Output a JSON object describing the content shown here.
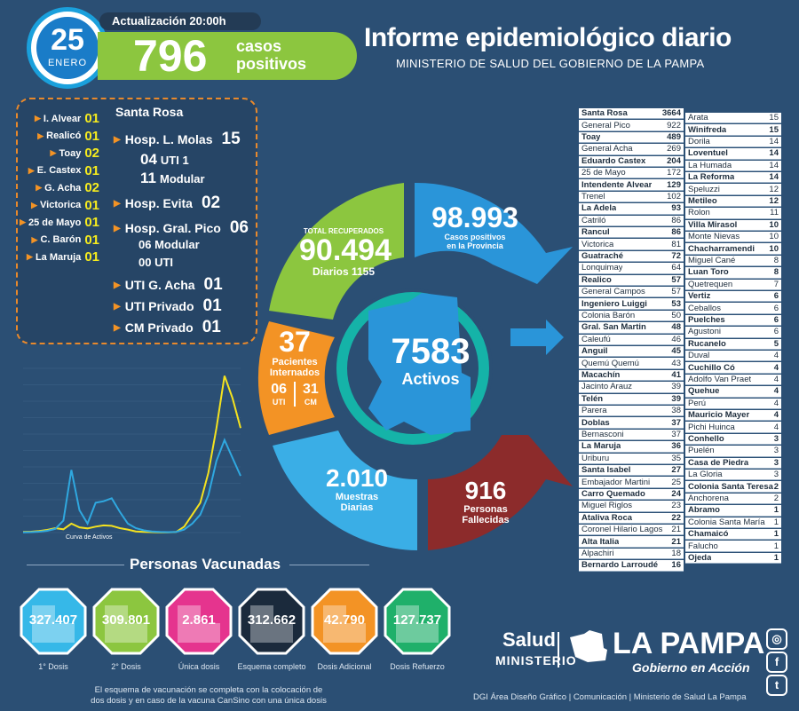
{
  "header": {
    "day": "25",
    "month": "ENERO",
    "update_label": "Actualización 20:00h",
    "positive_count": "796",
    "positive_label_1": "casos",
    "positive_label_2": "positivos",
    "title": "Informe epidemiológico diario",
    "subtitle": "MINISTERIO DE SALUD DEL GOBIERNO DE LA PAMPA"
  },
  "hospital_panel": {
    "localities": [
      {
        "name": "I. Alvear",
        "count": "01"
      },
      {
        "name": "Realicó",
        "count": "01"
      },
      {
        "name": "Toay",
        "count": "02"
      },
      {
        "name": "E. Castex",
        "count": "01"
      },
      {
        "name": "G. Acha",
        "count": "02"
      },
      {
        "name": "Victorica",
        "count": "01"
      },
      {
        "name": "25 de Mayo",
        "count": "01"
      },
      {
        "name": "C. Barón",
        "count": "01"
      },
      {
        "name": "La Maruja",
        "count": "01"
      }
    ],
    "santa_rosa": "Santa Rosa",
    "molas": {
      "name": "Hosp. L. Molas",
      "count": "15",
      "uti_n": "04",
      "uti": "UTI 1",
      "mod_n": "11",
      "mod": "Modular"
    },
    "evita": {
      "name": "Hosp. Evita",
      "count": "02"
    },
    "pico": {
      "name": "Hosp. Gral. Pico",
      "count": "06",
      "mod": "06 Modular",
      "uti": "00 UTI"
    },
    "uti_acha": {
      "name": "UTI G. Acha",
      "count": "01"
    },
    "uti_priv": {
      "name": "UTI Privado",
      "count": "01"
    },
    "cm_priv": {
      "name": "CM Privado",
      "count": "01"
    }
  },
  "curve": {
    "label": "Curva de Activos",
    "chart_data": {
      "type": "line",
      "series": [
        {
          "color": "#f4e21f",
          "values": [
            5,
            6,
            10,
            18,
            30,
            22,
            60,
            35,
            28,
            40,
            48,
            45,
            30,
            20,
            8,
            5,
            3,
            2,
            2,
            4,
            40,
            120,
            200,
            400,
            700,
            1050,
            900,
            700
          ]
        },
        {
          "color": "#2fa8e0",
          "values": [
            2,
            3,
            6,
            12,
            25,
            80,
            420,
            150,
            60,
            200,
            210,
            230,
            140,
            60,
            30,
            15,
            8,
            4,
            3,
            5,
            20,
            60,
            120,
            250,
            480,
            620,
            500,
            380
          ]
        }
      ]
    }
  },
  "ring": {
    "recovered_label": "TOTAL RECUPERADOS",
    "recovered": "90.494",
    "recovered_daily": "Diarios 1155",
    "positives": "98.993",
    "positives_label": "Casos positivos en la Provincia",
    "hosp": "37",
    "hosp_label": "Pacientes Internados",
    "uti_n": "06",
    "uti": "UTI",
    "cm_n": "31",
    "cm": "CM",
    "active": "7583",
    "active_label": "Activos",
    "samples": "2.010",
    "samples_label": "Muestras Diarias",
    "deaths": "916",
    "deaths_label": "Personas Fallecidas"
  },
  "vaccines": {
    "title": "Personas Vacunadas",
    "items": [
      {
        "value": "327.407",
        "label": "1° Dosis",
        "color": "#36b8e8"
      },
      {
        "value": "309.801",
        "label": "2° Dosis",
        "color": "#8cc63f"
      },
      {
        "value": "2.861",
        "label": "Única dosis",
        "color": "#e5348e"
      },
      {
        "value": "312.662",
        "label": "Esquema completo",
        "color": "#1b2a3c"
      },
      {
        "value": "42.790",
        "label": "Dosis Adicional",
        "color": "#f39325"
      },
      {
        "value": "127.737",
        "label": "Dosis Refuerzo",
        "color": "#1fb06a"
      }
    ],
    "note": "El esquema de vacunación se completa con la colocación de dos dosis y en caso de la vacuna CanSino con una única dosis"
  },
  "table1": [
    [
      "Santa Rosa",
      "3664",
      1
    ],
    [
      "General Pico",
      "922",
      0
    ],
    [
      "Toay",
      "489",
      1
    ],
    [
      "General Acha",
      "269",
      0
    ],
    [
      "Eduardo Castex",
      "204",
      1
    ],
    [
      "25 de Mayo",
      "172",
      0
    ],
    [
      "Intendente Alvear",
      "129",
      1
    ],
    [
      "Trenel",
      "102",
      0
    ],
    [
      "La Adela",
      "93",
      1
    ],
    [
      "Catriló",
      "86",
      0
    ],
    [
      "Rancul",
      "86",
      1
    ],
    [
      "Victorica",
      "81",
      0
    ],
    [
      "Guatraché",
      "72",
      1
    ],
    [
      "Lonquimay",
      "64",
      0
    ],
    [
      "Realico",
      "57",
      1
    ],
    [
      "General Campos",
      "57",
      0
    ],
    [
      "Ingeniero Luiggi",
      "53",
      1
    ],
    [
      "Colonia Barón",
      "50",
      0
    ],
    [
      "Gral. San Martin",
      "48",
      1
    ],
    [
      "Caleufú",
      "46",
      0
    ],
    [
      "Anguil",
      "45",
      1
    ],
    [
      "Quemú Quemú",
      "43",
      0
    ],
    [
      "Macachín",
      "41",
      1
    ],
    [
      "Jacinto Arauz",
      "39",
      0
    ],
    [
      "Telén",
      "39",
      1
    ],
    [
      "Parera",
      "38",
      0
    ],
    [
      "Doblas",
      "37",
      1
    ],
    [
      "Bernasconi",
      "37",
      0
    ],
    [
      "La Maruja",
      "36",
      1
    ],
    [
      "Uriburu",
      "35",
      0
    ],
    [
      "Santa Isabel",
      "27",
      1
    ],
    [
      "Embajador Martini",
      "25",
      0
    ],
    [
      "Carro Quemado",
      "24",
      1
    ],
    [
      "Miguel Riglos",
      "23",
      0
    ],
    [
      "Ataliva Roca",
      "22",
      1
    ],
    [
      "Coronel Hilario Lagos",
      "21",
      0
    ],
    [
      "Alta Italia",
      "21",
      1
    ],
    [
      "Alpachiri",
      "18",
      0
    ],
    [
      "Bernardo Larroudé",
      "16",
      1
    ]
  ],
  "table2": [
    [
      "Arata",
      "15",
      0
    ],
    [
      "Winifreda",
      "15",
      1
    ],
    [
      "Dorila",
      "14",
      0
    ],
    [
      "Loventuel",
      "14",
      1
    ],
    [
      "La Humada",
      "14",
      0
    ],
    [
      "La Reforma",
      "14",
      1
    ],
    [
      "Speluzzi",
      "12",
      0
    ],
    [
      "Metileo",
      "12",
      1
    ],
    [
      "Rolon",
      "11",
      0
    ],
    [
      "Villa Mirasol",
      "10",
      1
    ],
    [
      "Monte Nievas",
      "10",
      0
    ],
    [
      "Chacharramendi",
      "10",
      1
    ],
    [
      "Miguel Cané",
      "8",
      0
    ],
    [
      "Luan Toro",
      "8",
      1
    ],
    [
      "Quetrequen",
      "7",
      0
    ],
    [
      "Vertiz",
      "6",
      1
    ],
    [
      "Ceballos",
      "6",
      0
    ],
    [
      "Puelches",
      "6",
      1
    ],
    [
      "Agustoni",
      "6",
      0
    ],
    [
      "Rucanelo",
      "5",
      1
    ],
    [
      "Duval",
      "4",
      0
    ],
    [
      "Cuchillo Có",
      "4",
      1
    ],
    [
      "Adolfo Van Praet",
      "4",
      0
    ],
    [
      "Quehue",
      "4",
      1
    ],
    [
      "Perú",
      "4",
      0
    ],
    [
      "Mauricio Mayer",
      "4",
      1
    ],
    [
      "Pichi Huinca",
      "4",
      0
    ],
    [
      "Conhello",
      "3",
      1
    ],
    [
      "Puelén",
      "3",
      0
    ],
    [
      "Casa de Piedra",
      "3",
      1
    ],
    [
      "La Gloria",
      "3",
      0
    ],
    [
      "Colonia Santa Teresa",
      "2",
      1
    ],
    [
      "Anchorena",
      "2",
      0
    ],
    [
      "Abramo",
      "1",
      1
    ],
    [
      "Colonia Santa María",
      "1",
      0
    ],
    [
      "Chamaicó",
      "1",
      1
    ],
    [
      "Falucho",
      "1",
      0
    ],
    [
      "Ojeda",
      "1",
      1
    ]
  ],
  "footer": {
    "salud": "Salud",
    "ministerio": "MINISTERIO",
    "lapampa": "LA PAMPA",
    "gobierno": "Gobierno en Acción",
    "credits": "DGI Área Diseño Gráfico  |  Comunicación  |  Ministerio de Salud La Pampa"
  }
}
